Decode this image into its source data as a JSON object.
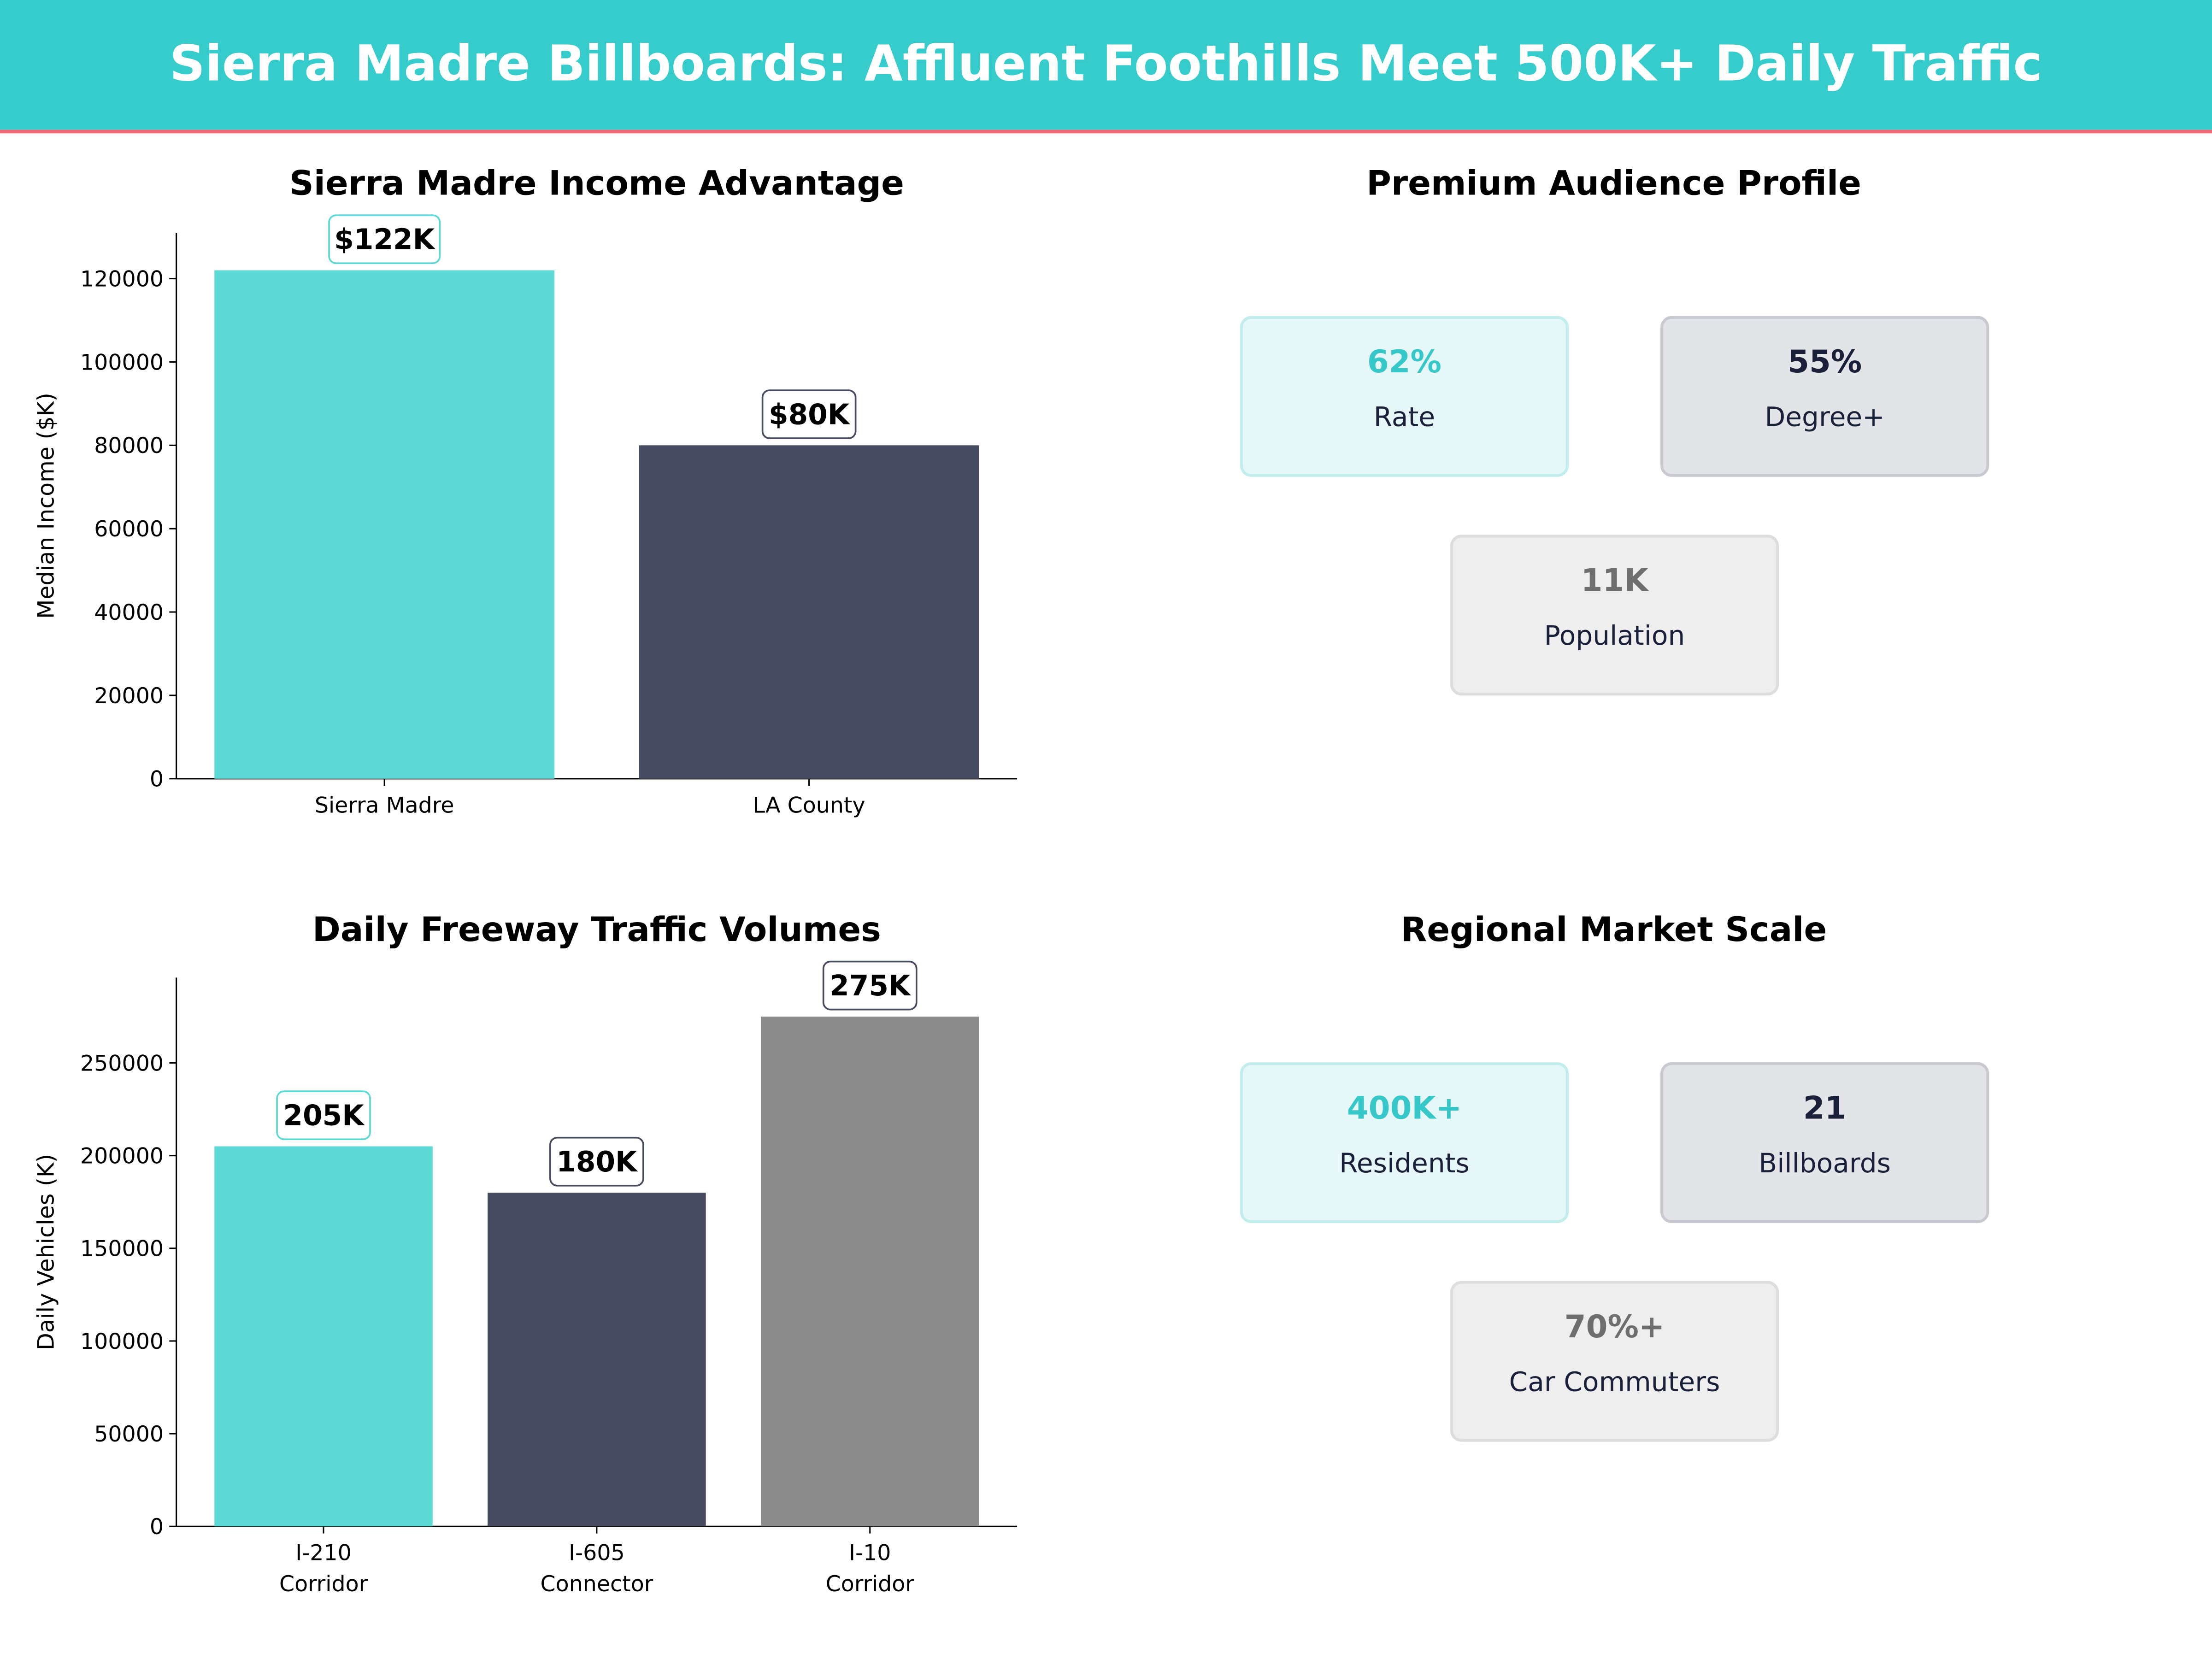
{
  "header": {
    "title": "Sierra Madre Billboards: Affluent Foothills Meet 500K+ Daily Traffic",
    "bg_color": "#36cccc",
    "accent_line_color": "#f06878"
  },
  "colors": {
    "teal": "#5dd9d5",
    "navy": "#464b60",
    "gray": "#8c8c8c"
  },
  "chart_data": [
    {
      "type": "bar",
      "title": "Sierra Madre Income Advantage",
      "ylabel": "Median Income ($K)",
      "xlabel": "",
      "categories": [
        "Sierra Madre",
        "LA County"
      ],
      "values": [
        122000,
        80000
      ],
      "data_labels": [
        "$122K",
        "$80K"
      ],
      "colors": [
        "#5dd9d5",
        "#464b60"
      ],
      "ylim": [
        0,
        131000
      ],
      "yticks": [
        0,
        20000,
        40000,
        60000,
        80000,
        100000,
        120000
      ],
      "grid": false
    },
    {
      "type": "bar",
      "title": "Daily Freeway Traffic Volumes",
      "ylabel": "Daily Vehicles (K)",
      "xlabel": "",
      "categories": [
        [
          "I-210",
          "Corridor"
        ],
        [
          "I-605",
          "Connector"
        ],
        [
          "I-10",
          "Corridor"
        ]
      ],
      "values": [
        205000,
        180000,
        275000
      ],
      "data_labels": [
        "205K",
        "180K",
        "275K"
      ],
      "colors": [
        "#5dd9d5",
        "#464b60",
        "#8c8c8c"
      ],
      "ylim": [
        0,
        296000
      ],
      "yticks": [
        0,
        50000,
        100000,
        150000,
        200000,
        250000
      ],
      "grid": false
    }
  ],
  "panels": [
    {
      "title": "Premium Audience Profile",
      "cards": [
        {
          "value": "62%",
          "label": "Rate",
          "style": "teal"
        },
        {
          "value": "55%",
          "label": "Degree+",
          "style": "navy"
        },
        {
          "value": "11K",
          "label": "Population",
          "style": "gray"
        }
      ]
    },
    {
      "title": "Regional Market Scale",
      "cards": [
        {
          "value": "400K+",
          "label": "Residents",
          "style": "teal"
        },
        {
          "value": "21",
          "label": "Billboards",
          "style": "navy"
        },
        {
          "value": "70%+",
          "label": "Car Commuters",
          "style": "gray"
        }
      ]
    }
  ]
}
